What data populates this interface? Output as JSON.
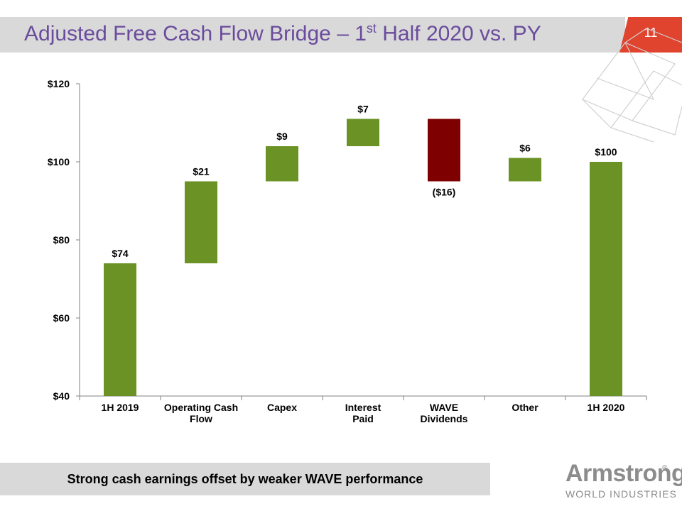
{
  "title": {
    "text": "Adjusted Free Cash Flow Bridge – 1",
    "superscript": "st",
    "suffix": " Half 2020 vs. PY"
  },
  "page_number": "11",
  "footer": "Strong cash earnings offset by weaker WAVE performance",
  "logo": {
    "name": "Armstrong",
    "reg": "®",
    "subtitle": "WORLD INDUSTRIES"
  },
  "colors": {
    "positive": "#6b9224",
    "negative": "#7f0000",
    "accent": "#e0432e",
    "title": "#6a4b9c"
  },
  "chart_data": {
    "type": "bar",
    "subtype": "waterfall",
    "categories": [
      "1H 2019",
      "Operating Cash Flow",
      "Capex",
      "Interest Paid",
      "WAVE Dividends",
      "Other",
      "1H 2020"
    ],
    "category_lines": [
      [
        "1H 2019"
      ],
      [
        "Operating Cash",
        "Flow"
      ],
      [
        "Capex"
      ],
      [
        "Interest",
        "Paid"
      ],
      [
        "WAVE",
        "Dividends"
      ],
      [
        "Other"
      ],
      [
        "1H 2020"
      ]
    ],
    "values": [
      74,
      21,
      9,
      7,
      -16,
      6,
      100
    ],
    "bar_kind": [
      "total",
      "delta",
      "delta",
      "delta",
      "delta",
      "delta",
      "total"
    ],
    "data_labels": [
      "$74",
      "$21",
      "$9",
      "$7",
      "($16)",
      "$6",
      "$100"
    ],
    "ylim": [
      40,
      120
    ],
    "y_ticks": [
      "$40",
      "$60",
      "$80",
      "$100",
      "$120"
    ],
    "y_tick_values": [
      40,
      60,
      80,
      100,
      120
    ],
    "grid": false,
    "legend": "none"
  }
}
